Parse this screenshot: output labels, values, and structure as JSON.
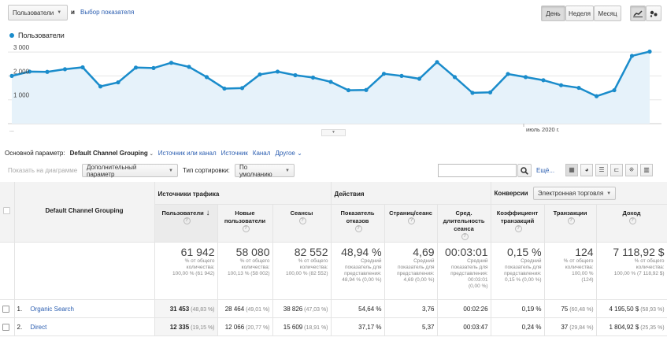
{
  "top": {
    "metric1": "Пользователи",
    "and_label": "и",
    "metric2_link": "Выбор показателя",
    "period_buttons": [
      "День",
      "Неделя",
      "Месяц"
    ]
  },
  "chart_data": {
    "type": "area",
    "series": [
      {
        "name": "Пользователи",
        "values": [
          2000,
          2180,
          2170,
          2280,
          2360,
          1560,
          1730,
          2350,
          2330,
          2550,
          2380,
          1950,
          1470,
          1490,
          2060,
          2180,
          2030,
          1930,
          1750,
          1400,
          1410,
          2090,
          2000,
          1880,
          2580,
          1950,
          1290,
          1310,
          2080,
          1950,
          1820,
          1610,
          1500,
          1150,
          1400,
          2840,
          3020
        ]
      }
    ],
    "ylim": [
      0,
      3300
    ],
    "yticks": [
      "3 000",
      "2 000",
      "1 000"
    ],
    "x_start_label": "...",
    "x_label": "июль 2020 г.",
    "color": "#1a8ccb",
    "fill": "#e6f2fa",
    "grid": true,
    "legend_position": "top-left"
  },
  "dimension_bar": {
    "label": "Основной параметр:",
    "current": "Default Channel Grouping",
    "options": [
      "Источник или канал",
      "Источник",
      "Канал",
      "Другое"
    ]
  },
  "toolbar": {
    "plot_rows": "Показать на диаграмме",
    "secondary": "Дополнительный параметр",
    "sort_label": "Тип сортировки:",
    "sort_value": "По умолчанию",
    "search_value": "",
    "more_label": "Ещё..."
  },
  "table": {
    "dimension_header": "Default Channel Grouping",
    "groups": [
      "Источники трафика",
      "Действия",
      "Конверсии"
    ],
    "conversions_select": "Электронная торговля",
    "columns": [
      "Пользователи",
      "Новые пользователи",
      "Сеансы",
      "Показатель отказов",
      "Страниц/сеанс",
      "Сред. длительность сеанса",
      "Коэффициент транзакций",
      "Транзакции",
      "Доход"
    ],
    "totals": [
      {
        "big": "61 942",
        "sub": [
          "% от общего",
          "количества:",
          "100,00 % (61 942)"
        ]
      },
      {
        "big": "58 080",
        "sub": [
          "% от общего",
          "количества:",
          "100,13 % (58 002)"
        ]
      },
      {
        "big": "82 552",
        "sub": [
          "% от общего",
          "количества:",
          "100,00 % (82 552)"
        ]
      },
      {
        "big": "48,94 %",
        "sub": [
          "Средний",
          "показатель для",
          "представления:",
          "48,94 % (0,00 %)"
        ]
      },
      {
        "big": "4,69",
        "sub": [
          "Средний",
          "показатель для",
          "представления:",
          "4,69 (0,00 %)"
        ]
      },
      {
        "big": "00:03:01",
        "sub": [
          "Средний",
          "показатель для",
          "представления:",
          "00:03:01",
          "(0,00 %)"
        ]
      },
      {
        "big": "0,15 %",
        "sub": [
          "Средний",
          "показатель для",
          "представления:",
          "0,15 % (0,00 %)"
        ]
      },
      {
        "big": "124",
        "sub": [
          "% от общего",
          "количества:",
          "100,00 %",
          "(124)"
        ]
      },
      {
        "big": "7 118,92 $",
        "sub": [
          "% от общего",
          "количества:",
          "100,00 % (7 118,92 $)"
        ]
      }
    ],
    "rows": [
      {
        "num": "1.",
        "name": "Organic Search",
        "cells": [
          [
            "31 453",
            "(48,83 %)"
          ],
          [
            "28 464",
            "(49,01 %)"
          ],
          [
            "38 826",
            "(47,03 %)"
          ],
          [
            "54,64 %",
            ""
          ],
          [
            "3,76",
            ""
          ],
          [
            "00:02:26",
            ""
          ],
          [
            "0,19 %",
            ""
          ],
          [
            "75",
            "(60,48 %)"
          ],
          [
            "4 195,50 $",
            "(58,93 %)"
          ]
        ]
      },
      {
        "num": "2.",
        "name": "Direct",
        "cells": [
          [
            "12 335",
            "(19,15 %)"
          ],
          [
            "12 066",
            "(20,77 %)"
          ],
          [
            "15 609",
            "(18,91 %)"
          ],
          [
            "37,17 %",
            ""
          ],
          [
            "5,37",
            ""
          ],
          [
            "00:03:47",
            ""
          ],
          [
            "0,24 %",
            ""
          ],
          [
            "37",
            "(29,84 %)"
          ],
          [
            "1 804,92 $",
            "(25,35 %)"
          ]
        ]
      }
    ]
  }
}
